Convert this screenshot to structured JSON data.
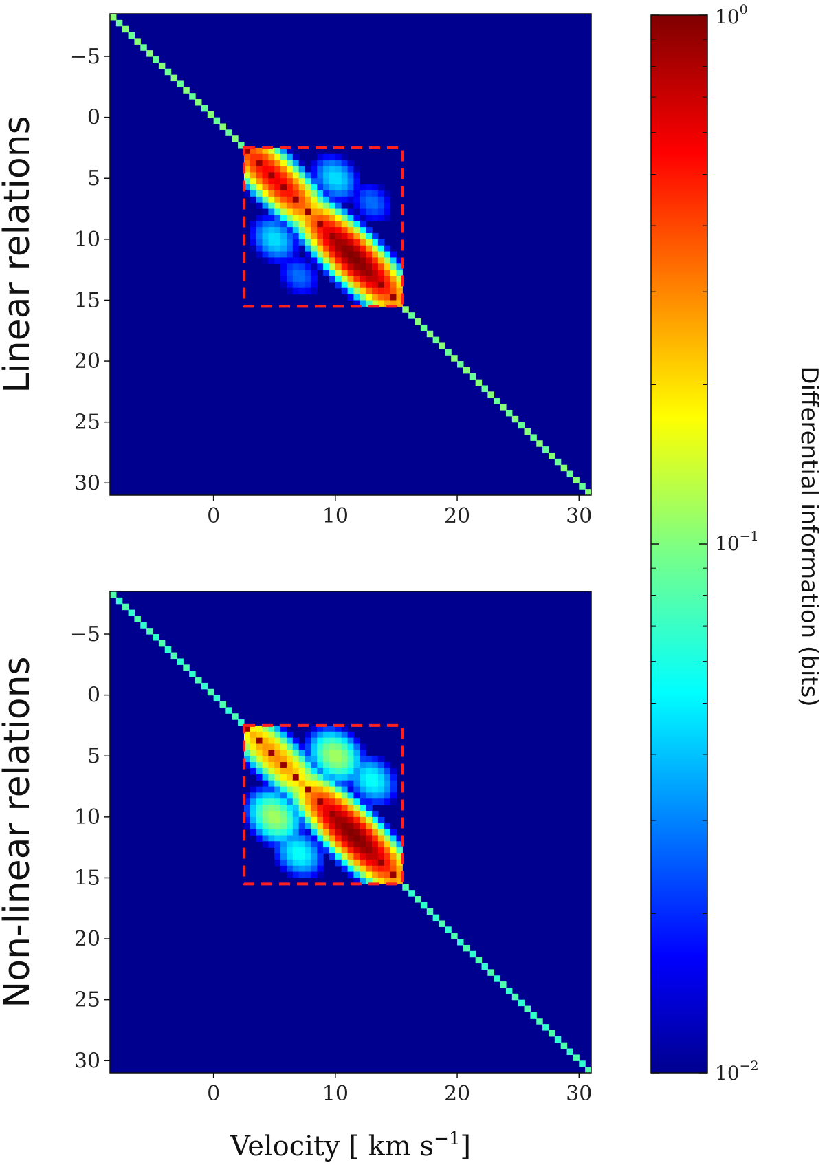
{
  "figure": {
    "xlabel": "Velocity [ km s",
    "xlabel_exp": "−1",
    "xlabel_close": "]",
    "colorbar": {
      "label": "Differential information (bits)",
      "scale": "log",
      "range": [
        0.01,
        1
      ],
      "ticks": [
        {
          "base": "10",
          "exp": "0"
        },
        {
          "base": "10",
          "exp": "−1"
        },
        {
          "base": "10",
          "exp": "−2"
        }
      ],
      "colormap": "jet"
    },
    "colors": {
      "background": "#00008f",
      "box": "#ff2020",
      "low": "#00008f",
      "high": "#7f0000"
    }
  },
  "chart_data": [
    {
      "type": "heatmap",
      "row_label": "Linear relations",
      "x_range": [
        -8.5,
        31
      ],
      "y_range": [
        -8.5,
        31
      ],
      "y_inverted": true,
      "xticks": [
        "0",
        "10",
        "20",
        "30"
      ],
      "yticks": [
        "−5",
        "0",
        "5",
        "10",
        "15",
        "20",
        "25",
        "30"
      ],
      "xtick_values": [
        0,
        10,
        20,
        30
      ],
      "ytick_values": [
        -5,
        0,
        5,
        10,
        15,
        20,
        25,
        30
      ],
      "box_region": {
        "x": [
          2.5,
          15.5
        ],
        "y": [
          2.5,
          15.5
        ]
      },
      "diagonal_value": 0.09,
      "features": [
        {
          "center": [
            5,
            5
          ],
          "peak": 0.6
        },
        {
          "center": [
            11.5,
            11.5
          ],
          "peak": 1.0
        },
        {
          "center": [
            10,
            5
          ],
          "peak": 0.05
        },
        {
          "center": [
            5,
            10
          ],
          "peak": 0.05
        },
        {
          "center": [
            13,
            7
          ],
          "peak": 0.03
        },
        {
          "center": [
            7,
            13
          ],
          "peak": 0.03
        }
      ]
    },
    {
      "type": "heatmap",
      "row_label": "Non-linear relations",
      "x_range": [
        -8.5,
        31
      ],
      "y_range": [
        -8.5,
        31
      ],
      "y_inverted": true,
      "xticks": [
        "0",
        "10",
        "20",
        "30"
      ],
      "yticks": [
        "−5",
        "0",
        "5",
        "10",
        "15",
        "20",
        "25",
        "30"
      ],
      "xtick_values": [
        0,
        10,
        20,
        30
      ],
      "ytick_values": [
        -5,
        0,
        5,
        10,
        15,
        20,
        25,
        30
      ],
      "box_region": {
        "x": [
          2.5,
          15.5
        ],
        "y": [
          2.5,
          15.5
        ]
      },
      "diagonal_value": 0.07,
      "features": [
        {
          "center": [
            5,
            5
          ],
          "peak": 0.3
        },
        {
          "center": [
            11.5,
            11.5
          ],
          "peak": 1.0
        },
        {
          "center": [
            10,
            5
          ],
          "peak": 0.12
        },
        {
          "center": [
            5,
            10
          ],
          "peak": 0.12
        },
        {
          "center": [
            13,
            7
          ],
          "peak": 0.06
        },
        {
          "center": [
            7,
            13
          ],
          "peak": 0.06
        }
      ]
    }
  ]
}
